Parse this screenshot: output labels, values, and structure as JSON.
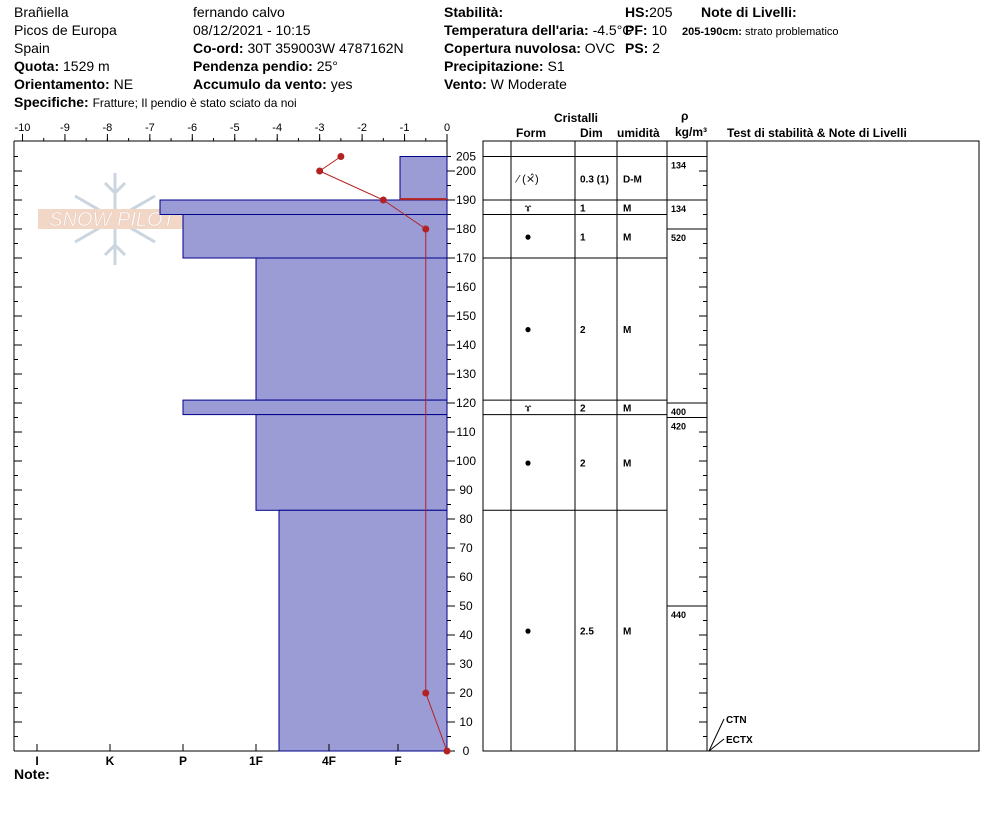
{
  "header": {
    "location": "Brañiella",
    "range": "Picos de Europa",
    "country": "Spain",
    "quota_label": "Quota:",
    "quota_value": "1529 m",
    "orient_label": "Orientamento:",
    "orient_value": "NE",
    "specifiche_label": "Specifiche:",
    "specifiche_value": "Fratture;  Il pendio è stato sciato da noi",
    "observer": "fernando calvo",
    "datetime": "08/12/2021 - 10:15",
    "coord_label": "Co-ord:",
    "coord_value": "30T 359003W 4787162N",
    "pendenza_label": "Pendenza pendio:",
    "pendenza_value": "25°",
    "accumulo_label": "Accumulo da vento:",
    "accumulo_value": "yes",
    "stabilita_label": "Stabilità:",
    "temp_label": "Temperatura dell'aria:",
    "temp_value": "-4.5°C",
    "copertura_label": "Copertura nuvolosa:",
    "copertura_value": "OVC",
    "precip_label": "Precipitazione:",
    "precip_value": "S1",
    "vento_label": "Vento:",
    "vento_value": "W Moderate",
    "hs_label": "HS:",
    "hs_value": "205",
    "pf_label": "PF:",
    "pf_value": "10",
    "ps_label": "PS:",
    "ps_value": "2",
    "note_livelli_label": "Note di Livelli:",
    "note_livelli_range": "205-190cm:",
    "note_livelli_text": "strato problematico"
  },
  "watermark": "SNOW PILOT",
  "columns": {
    "cristalli": "Cristalli",
    "form": "Form",
    "dim": "Dim",
    "umidita": "umidità",
    "rho": "ρ",
    "rho_unit": "kg/m³",
    "tests": "Test di stabilità & Note di Livelli"
  },
  "note_label": "Note:",
  "colors": {
    "hardness_fill": "#9b9bd6",
    "hardness_stroke": "#00008b",
    "temp_line": "#b22222"
  },
  "chart_data": {
    "type": "snow_profile",
    "temp_axis": {
      "ticks": [
        -10,
        -9,
        -8,
        -7,
        -6,
        -5,
        -4,
        -3,
        -2,
        -1,
        0
      ]
    },
    "hardness_axis": [
      "I",
      "K",
      "P",
      "1F",
      "4F",
      "F"
    ],
    "height_axis": {
      "ticks": [
        205,
        200,
        190,
        180,
        170,
        160,
        150,
        140,
        130,
        120,
        110,
        100,
        90,
        80,
        70,
        60,
        50,
        40,
        30,
        20,
        10,
        0
      ]
    },
    "hardness_layers": [
      {
        "top": 205,
        "bottom": 190,
        "hardness": "F"
      },
      {
        "top": 190,
        "bottom": 185,
        "hardness": "P+"
      },
      {
        "top": 185,
        "bottom": 170,
        "hardness": "P"
      },
      {
        "top": 170,
        "bottom": 121,
        "hardness": "1F"
      },
      {
        "top": 121,
        "bottom": 116,
        "hardness": "P"
      },
      {
        "top": 116,
        "bottom": 83,
        "hardness": "1F"
      },
      {
        "top": 83,
        "bottom": 0,
        "hardness": "1F-"
      }
    ],
    "temperature_profile": [
      {
        "height": 205,
        "temp": -2.5
      },
      {
        "height": 200,
        "temp": -3.0
      },
      {
        "height": 190,
        "temp": -1.5
      },
      {
        "height": 180,
        "temp": -0.5
      },
      {
        "height": 20,
        "temp": -0.5
      },
      {
        "height": 0,
        "temp": 0.0
      }
    ],
    "layer_rows": [
      {
        "top": 205,
        "bottom": 190,
        "form": "⁄ (⨯̂)",
        "dim": "0.3 (1)",
        "umid": "D-M"
      },
      {
        "top": 190,
        "bottom": 185,
        "form": "ɤ",
        "dim": "1",
        "umid": "M"
      },
      {
        "top": 185,
        "bottom": 170,
        "form": "●",
        "dim": "1",
        "umid": "M"
      },
      {
        "top": 170,
        "bottom": 121,
        "form": "●",
        "dim": "2",
        "umid": "M"
      },
      {
        "top": 121,
        "bottom": 116,
        "form": "ɤ",
        "dim": "2",
        "umid": "M"
      },
      {
        "top": 116,
        "bottom": 83,
        "form": "●",
        "dim": "2",
        "umid": "M"
      },
      {
        "top": 83,
        "bottom": 0,
        "form": "●",
        "dim": "2.5",
        "umid": "M"
      }
    ],
    "densities": [
      {
        "top": 205,
        "bottom": 190,
        "value": "134"
      },
      {
        "top": 190,
        "bottom": 180,
        "value": "134"
      },
      {
        "top": 180,
        "bottom": 120,
        "value": "520"
      },
      {
        "top": 120,
        "bottom": 115,
        "value": "400"
      },
      {
        "top": 115,
        "bottom": 50,
        "value": "420"
      },
      {
        "top": 50,
        "bottom": 0,
        "value": "440"
      }
    ],
    "stability_tests": [
      {
        "height": 0,
        "label": "CTN"
      },
      {
        "height": 0,
        "label": "ECTX"
      }
    ]
  }
}
